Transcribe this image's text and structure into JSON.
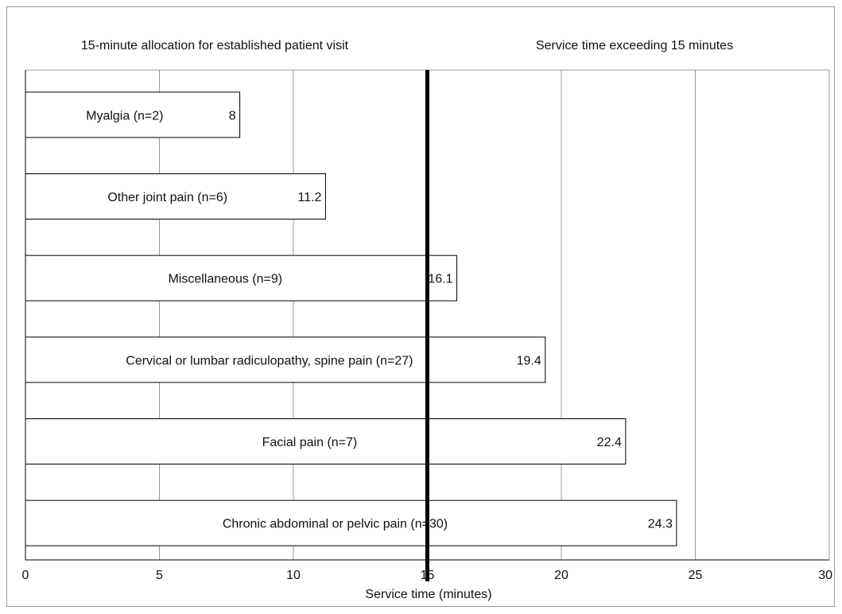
{
  "chart_data": {
    "type": "bar",
    "orientation": "horizontal",
    "region_labels": {
      "left": "15-minute allocation for established patient visit",
      "right": "Service time exceeding 15 minutes"
    },
    "categories": [
      "Myalgia (n=2)",
      "Other joint pain (n=6)",
      "Miscellaneous (n=9)",
      "Cervical or lumbar radiculopathy, spine pain (n=27)",
      "Facial pain (n=7)",
      "Chronic abdominal or pelvic pain (n=30)"
    ],
    "values": [
      8,
      11.2,
      16.1,
      19.4,
      22.4,
      24.3
    ],
    "value_labels": [
      "8",
      "11.2",
      "16.1",
      "19.4",
      "22.4",
      "24.3"
    ],
    "xlabel": "Service time (minutes)",
    "xlim": [
      0,
      30
    ],
    "xticks": [
      "0",
      "5",
      "10",
      "15",
      "20",
      "25",
      "30"
    ],
    "reference_line": 15,
    "grid": "vertical",
    "colors": {
      "bar_fill": "#ffffff",
      "bar_stroke": "#000000",
      "grid": "#9a9a9a",
      "reference": "#000000"
    }
  }
}
